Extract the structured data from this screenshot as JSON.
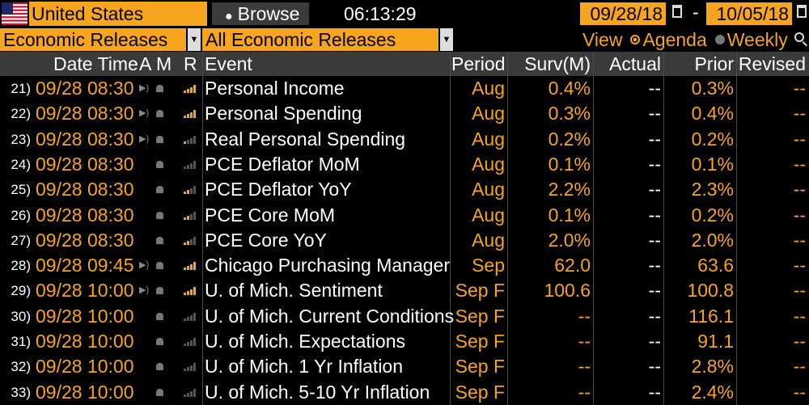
{
  "toolbar": {
    "country": "United States",
    "browse_label": "Browse",
    "clock": "06:13:29",
    "date_start": "09/28/18",
    "date_separator": "-",
    "date_end": "10/05/18"
  },
  "filters": {
    "category": "Economic Releases",
    "subcategory": "All Economic Releases",
    "view_label": "View",
    "view_options": [
      "Agenda",
      "Weekly"
    ],
    "view_selected": "Agenda"
  },
  "columns": {
    "datetime": "Date Time",
    "a": "A",
    "m": "M",
    "r": "R",
    "event": "Event",
    "period": "Period",
    "surv": "Surv(M)",
    "actual": "Actual",
    "prior": "Prior",
    "revised": "Revised"
  },
  "rows": [
    {
      "num": "21)",
      "dt": "09/28 08:30",
      "audio": true,
      "rel": 4,
      "event": "Personal Income",
      "period": "Aug",
      "surv": "0.4%",
      "actual": "--",
      "prior": "0.3%",
      "revised": "--"
    },
    {
      "num": "22)",
      "dt": "09/28 08:30",
      "audio": true,
      "rel": 4,
      "event": "Personal Spending",
      "period": "Aug",
      "surv": "0.3%",
      "actual": "--",
      "prior": "0.4%",
      "revised": "--"
    },
    {
      "num": "23)",
      "dt": "09/28 08:30",
      "audio": true,
      "rel": 1,
      "event": "Real Personal Spending",
      "period": "Aug",
      "surv": "0.2%",
      "actual": "--",
      "prior": "0.2%",
      "revised": "--"
    },
    {
      "num": "24)",
      "dt": "09/28 08:30",
      "audio": false,
      "rel": 0,
      "event": "PCE Deflator MoM",
      "period": "Aug",
      "surv": "0.1%",
      "actual": "--",
      "prior": "0.1%",
      "revised": "--"
    },
    {
      "num": "25)",
      "dt": "09/28 08:30",
      "audio": false,
      "rel": 2,
      "event": "PCE Deflator YoY",
      "period": "Aug",
      "surv": "2.2%",
      "actual": "--",
      "prior": "2.3%",
      "revised": "--"
    },
    {
      "num": "26)",
      "dt": "09/28 08:30",
      "audio": false,
      "rel": 2,
      "event": "PCE Core MoM",
      "period": "Aug",
      "surv": "0.1%",
      "actual": "--",
      "prior": "0.2%",
      "revised": "--"
    },
    {
      "num": "27)",
      "dt": "09/28 08:30",
      "audio": false,
      "rel": 2,
      "event": "PCE Core YoY",
      "period": "Aug",
      "surv": "2.0%",
      "actual": "--",
      "prior": "2.0%",
      "revised": "--"
    },
    {
      "num": "28)",
      "dt": "09/28 09:45",
      "audio": true,
      "rel": 4,
      "event": "Chicago Purchasing Manager",
      "period": "Sep",
      "surv": "62.0",
      "actual": "--",
      "prior": "63.6",
      "revised": "--"
    },
    {
      "num": "29)",
      "dt": "09/28 10:00",
      "audio": true,
      "rel": 4,
      "event": "U. of Mich. Sentiment",
      "period": "Sep F",
      "surv": "100.6",
      "actual": "--",
      "prior": "100.8",
      "revised": "--"
    },
    {
      "num": "30)",
      "dt": "09/28 10:00",
      "audio": false,
      "rel": 0,
      "event": "U. of Mich. Current Conditions",
      "period": "Sep F",
      "surv": "--",
      "actual": "--",
      "prior": "116.1",
      "revised": "--"
    },
    {
      "num": "31)",
      "dt": "09/28 10:00",
      "audio": false,
      "rel": 0,
      "event": "U. of Mich. Expectations",
      "period": "Sep F",
      "surv": "--",
      "actual": "--",
      "prior": "91.1",
      "revised": "--"
    },
    {
      "num": "32)",
      "dt": "09/28 10:00",
      "audio": false,
      "rel": 0,
      "event": "U. of Mich. 1 Yr Inflation",
      "period": "Sep F",
      "surv": "--",
      "actual": "--",
      "prior": "2.8%",
      "revised": "--"
    },
    {
      "num": "33)",
      "dt": "09/28 10:00",
      "audio": false,
      "rel": 0,
      "event": "U. of Mich. 5-10 Yr Inflation",
      "period": "Sep F",
      "surv": "--",
      "actual": "--",
      "prior": "2.4%",
      "revised": "--"
    }
  ]
}
